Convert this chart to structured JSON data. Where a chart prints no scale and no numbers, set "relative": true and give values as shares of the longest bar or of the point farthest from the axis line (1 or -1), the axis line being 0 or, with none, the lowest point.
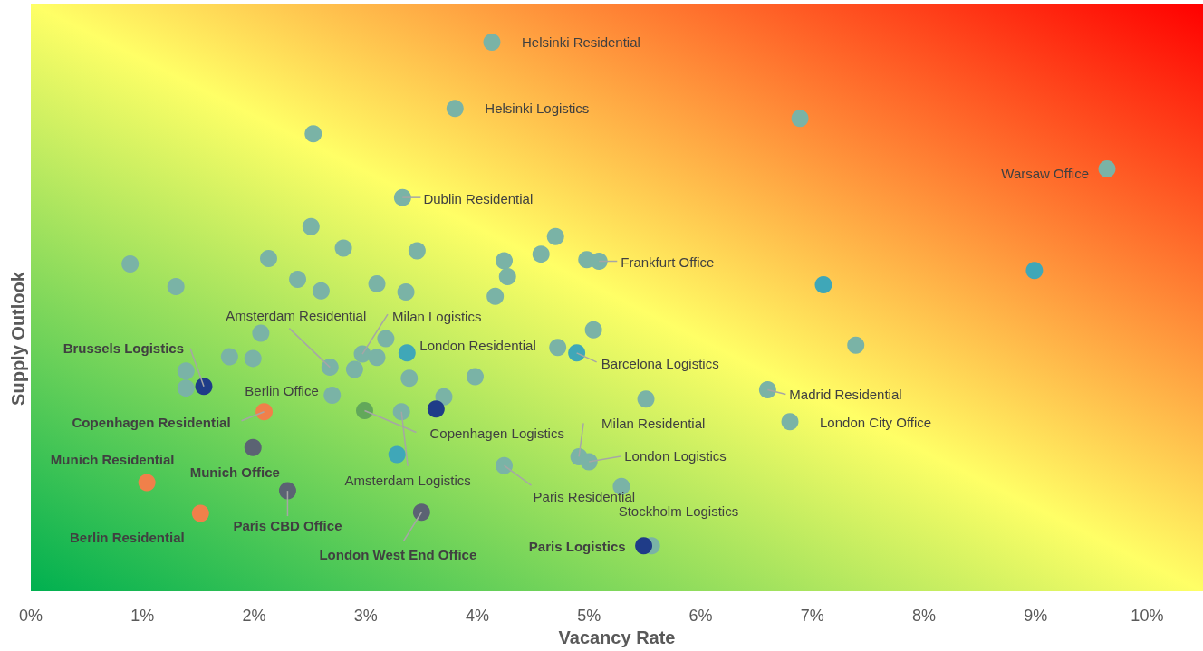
{
  "chart_data": {
    "type": "scatter",
    "xlabel": "Vacancy Rate",
    "ylabel": "Supply Outlook",
    "relative": true,
    "marker": "circle",
    "xlim": [
      0,
      10.5
    ],
    "xticks": [
      {
        "value": 0,
        "label": "0%"
      },
      {
        "value": 1,
        "label": "1%"
      },
      {
        "value": 2,
        "label": "2%"
      },
      {
        "value": 3,
        "label": "3%"
      },
      {
        "value": 4,
        "label": "4%"
      },
      {
        "value": 5,
        "label": "5%"
      },
      {
        "value": 6,
        "label": "6%"
      },
      {
        "value": 7,
        "label": "7%"
      },
      {
        "value": 8,
        "label": "8%"
      },
      {
        "value": 9,
        "label": "9%"
      },
      {
        "value": 10,
        "label": "10%"
      }
    ],
    "x": [
      4.13,
      3.8,
      6.89,
      2.53,
      9.64,
      3.33,
      2.51,
      4.7,
      2.8,
      3.46,
      4.57,
      4.98,
      5.09,
      4.24,
      0.89,
      2.13,
      4.27,
      8.99,
      2.39,
      1.3,
      3.1,
      2.6,
      3.36,
      7.1,
      4.16,
      5.04,
      2.06,
      3.18,
      7.39,
      3.37,
      4.72,
      4.89,
      1.78,
      1.99,
      2.97,
      3.1,
      2.68,
      2.9,
      1.39,
      1.55,
      1.39,
      3.39,
      3.98,
      2.7,
      3.7,
      6.6,
      5.51,
      2.09,
      2.99,
      3.32,
      3.63,
      6.8,
      1.99,
      3.28,
      4.91,
      5.0,
      4.24,
      1.04,
      2.3,
      5.29,
      1.52,
      3.5,
      5.56,
      5.49
    ],
    "values": [
      1.0,
      0.879,
      0.861,
      0.833,
      0.769,
      0.717,
      0.664,
      0.646,
      0.625,
      0.62,
      0.614,
      0.604,
      0.601,
      0.602,
      0.596,
      0.606,
      0.573,
      0.584,
      0.568,
      0.555,
      0.56,
      0.547,
      0.545,
      0.558,
      0.537,
      0.476,
      0.47,
      0.46,
      0.448,
      0.434,
      0.444,
      0.434,
      0.427,
      0.424,
      0.432,
      0.426,
      0.408,
      0.404,
      0.401,
      0.373,
      0.37,
      0.388,
      0.391,
      0.357,
      0.354,
      0.367,
      0.35,
      0.327,
      0.329,
      0.327,
      0.332,
      0.309,
      0.262,
      0.249,
      0.245,
      0.236,
      0.229,
      0.198,
      0.183,
      0.191,
      0.142,
      0.144,
      0.083,
      0.083
    ],
    "colors": [
      "#7ab3a6",
      "#7ab3a6",
      "#7ab3a6",
      "#7ab3a6",
      "#7ab3a6",
      "#7ab3a6",
      "#7ab3a6",
      "#7ab3a6",
      "#7ab3a6",
      "#7ab3a6",
      "#7ab3a6",
      "#7ab3a6",
      "#7ab3a6",
      "#7ab3a6",
      "#7ab3a6",
      "#7ab3a6",
      "#7ab3a6",
      "#3fa7b8",
      "#7ab3a6",
      "#7ab3a6",
      "#7ab3a6",
      "#7ab3a6",
      "#7ab3a6",
      "#3fa7b8",
      "#7ab3a6",
      "#7ab3a6",
      "#7ab3a6",
      "#7ab3a6",
      "#7ab3a6",
      "#3fa7b8",
      "#7ab3a6",
      "#3fa7b8",
      "#7ab3a6",
      "#7ab3a6",
      "#7ab3a6",
      "#7ab3a6",
      "#7ab3a6",
      "#7ab3a6",
      "#7ab3a6",
      "#1f3c88",
      "#7ab3a6",
      "#7ab3a6",
      "#7ab3a6",
      "#7ab3a6",
      "#7ab3a6",
      "#7ab3a6",
      "#7ab3a6",
      "#f0804a",
      "#62a85a",
      "#7ab3a6",
      "#1f3c88",
      "#7ab3a6",
      "#5b6373",
      "#3fa7b8",
      "#7ab3a6",
      "#7ab3a6",
      "#7ab3a6",
      "#f0804a",
      "#5b6373",
      "#7ab3a6",
      "#f0804a",
      "#5b6373",
      "#7ab3a6",
      "#1f3c88"
    ],
    "annotations": [
      {
        "text": "Helsinki Residential",
        "x": 4.13,
        "y": 1.0
      },
      {
        "text": "Helsinki Logistics",
        "x": 3.8,
        "y": 0.879
      },
      {
        "text": "Warsaw Office",
        "x": 9.64,
        "y": 0.769
      },
      {
        "text": "Dublin Residential",
        "x": 3.33,
        "y": 0.717
      },
      {
        "text": "Frankfurt Office",
        "x": 5.09,
        "y": 0.601
      },
      {
        "text": "London Residential",
        "x": 3.37,
        "y": 0.434
      },
      {
        "text": "Barcelona Logistics",
        "x": 4.89,
        "y": 0.434
      },
      {
        "text": "Milan Logistics",
        "x": 2.97,
        "y": 0.432
      },
      {
        "text": "Amsterdam Residential",
        "x": 2.68,
        "y": 0.408
      },
      {
        "text": "Brussels Logistics",
        "x": 1.55,
        "y": 0.373
      },
      {
        "text": "Berlin Office",
        "x": 2.7,
        "y": 0.357
      },
      {
        "text": "Madrid Residential",
        "x": 6.6,
        "y": 0.367
      },
      {
        "text": "Copenhagen Residential",
        "x": 2.09,
        "y": 0.327
      },
      {
        "text": "Copenhagen Logistics",
        "x": 2.99,
        "y": 0.329
      },
      {
        "text": "London City Office",
        "x": 6.8,
        "y": 0.309
      },
      {
        "text": "Milan Residential",
        "x": 4.91,
        "y": 0.245
      },
      {
        "text": "London Logistics",
        "x": 5.0,
        "y": 0.236
      },
      {
        "text": "Munich Office",
        "x": 1.99,
        "y": 0.262
      },
      {
        "text": "Munich Residential",
        "x": 1.04,
        "y": 0.198
      },
      {
        "text": "Amsterdam Logistics",
        "x": 3.32,
        "y": 0.327
      },
      {
        "text": "Paris Residential",
        "x": 4.24,
        "y": 0.229
      },
      {
        "text": "Paris CBD Office",
        "x": 2.3,
        "y": 0.183
      },
      {
        "text": "Stockholm Logistics",
        "x": 5.29,
        "y": 0.191
      },
      {
        "text": "Berlin Residential",
        "x": 1.52,
        "y": 0.142
      },
      {
        "text": "London West End Office",
        "x": 3.5,
        "y": 0.144
      },
      {
        "text": "Paris Logistics",
        "x": 5.49,
        "y": 0.083
      }
    ]
  }
}
